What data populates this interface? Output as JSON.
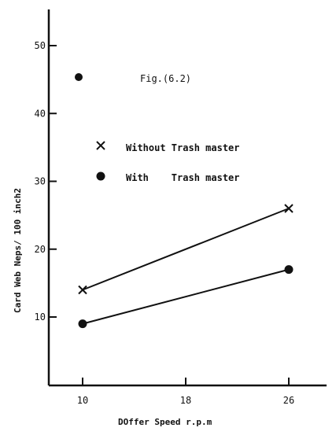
{
  "chart_data": {
    "type": "line",
    "title": "",
    "figure_label": "Fig.(6.2)",
    "xlabel": "DOffer Speed r.p.m",
    "ylabel": "Card Web Neps/ 100 inch2",
    "x_ticks": [
      "10",
      "18",
      "26"
    ],
    "y_ticks": [
      "10",
      "20",
      "30",
      "40",
      "50"
    ],
    "xlim": [
      10,
      26
    ],
    "ylim": [
      0,
      56
    ],
    "grid": false,
    "legend": [
      {
        "marker": "cross",
        "label": "Without Trash master"
      },
      {
        "marker": "dot",
        "label": "With    Trash master"
      }
    ],
    "series": [
      {
        "name": "Without Trash master",
        "marker": "cross",
        "x": [
          10,
          26
        ],
        "y": [
          14,
          26
        ]
      },
      {
        "name": "With Trash master",
        "marker": "dot",
        "x": [
          10,
          26
        ],
        "y": [
          9,
          17
        ]
      }
    ]
  }
}
